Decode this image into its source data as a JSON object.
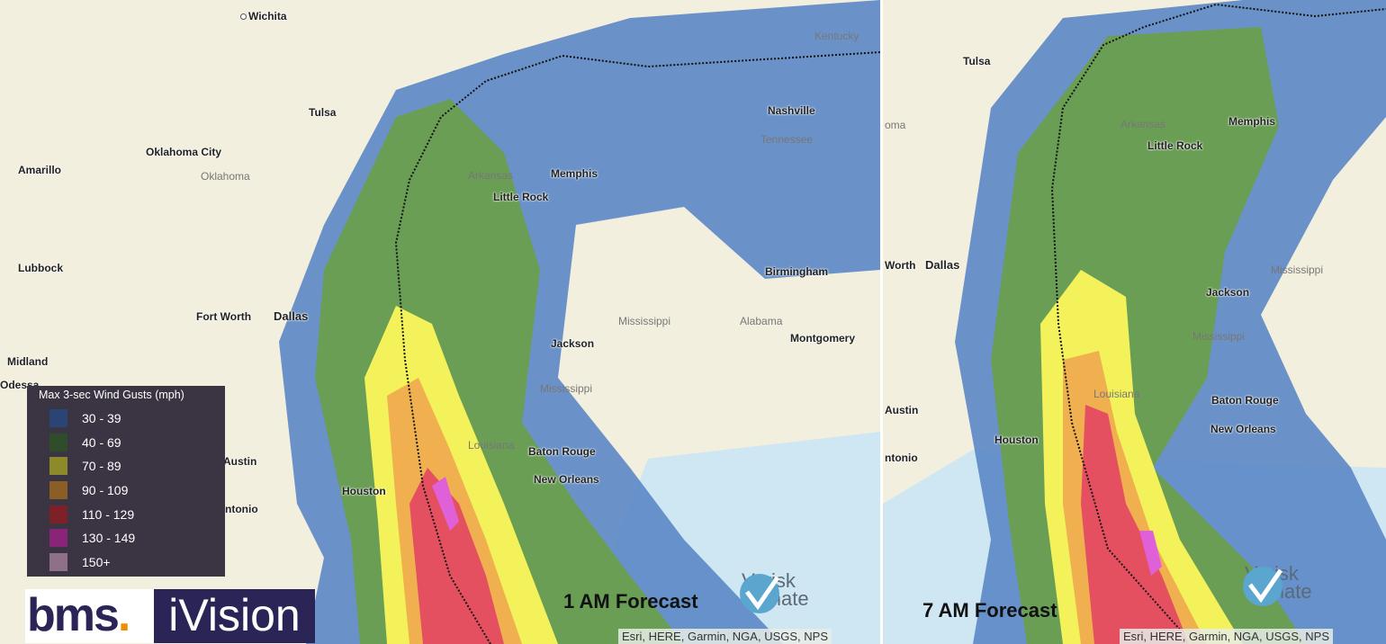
{
  "legend": {
    "title": "Max 3-sec Wind Gusts (mph)",
    "items": [
      {
        "label": "30 - 39",
        "color": "#2a4575"
      },
      {
        "label": "40 - 69",
        "color": "#2f4d2a"
      },
      {
        "label": "70 - 89",
        "color": "#8d8a2a"
      },
      {
        "label": "90 - 109",
        "color": "#8a5e24"
      },
      {
        "label": "110 - 129",
        "color": "#7e2027"
      },
      {
        "label": "130 - 149",
        "color": "#8a2478"
      },
      {
        "label": "150+",
        "color": "#8e7088"
      }
    ]
  },
  "swath_colors": {
    "blue": "#5b87c5",
    "green": "#6a9e55",
    "yellow": "#f3f25a",
    "orange": "#f0b050",
    "red": "#e45060",
    "magenta": "#e060d8",
    "water": "#cfe6f3"
  },
  "logo": {
    "bms": "bms",
    "dot": ".",
    "ivision": "iVision",
    "verisk_line1": "Verisk",
    "verisk_line2": "Climate"
  },
  "attribution": "Esri, HERE, Garmin, NGA, USGS, NPS",
  "panels": [
    {
      "forecast_label": "1 AM Forecast",
      "cities": [
        "Wichita",
        "Tulsa",
        "Oklahoma City",
        "Amarillo",
        "Lubbock",
        "Fort Worth",
        "Dallas",
        "Midland",
        "Odessa",
        "Austin",
        "ntonio",
        "Houston",
        "Little Rock",
        "Memphis",
        "Nashville",
        "Birmingham",
        "Montgomery",
        "Jackson",
        "Baton Rouge",
        "New Orleans"
      ],
      "states": [
        "Oklahoma",
        "Arkansas",
        "Tennessee",
        "Mississippi",
        "Alabama",
        "Mississippi",
        "Louisiana",
        "Kentucky"
      ]
    },
    {
      "forecast_label": "7 AM Forecast",
      "cities": [
        "Tulsa",
        "oma",
        "Little Rock",
        "Memphis",
        "Worth",
        "Dallas",
        "Jackson",
        "Baton Rouge",
        "Austin",
        "Houston",
        "New Orleans",
        "ntonio"
      ],
      "states": [
        "Arkansas",
        "Mississippi",
        "Mississippi",
        "Louisiana"
      ]
    }
  ]
}
